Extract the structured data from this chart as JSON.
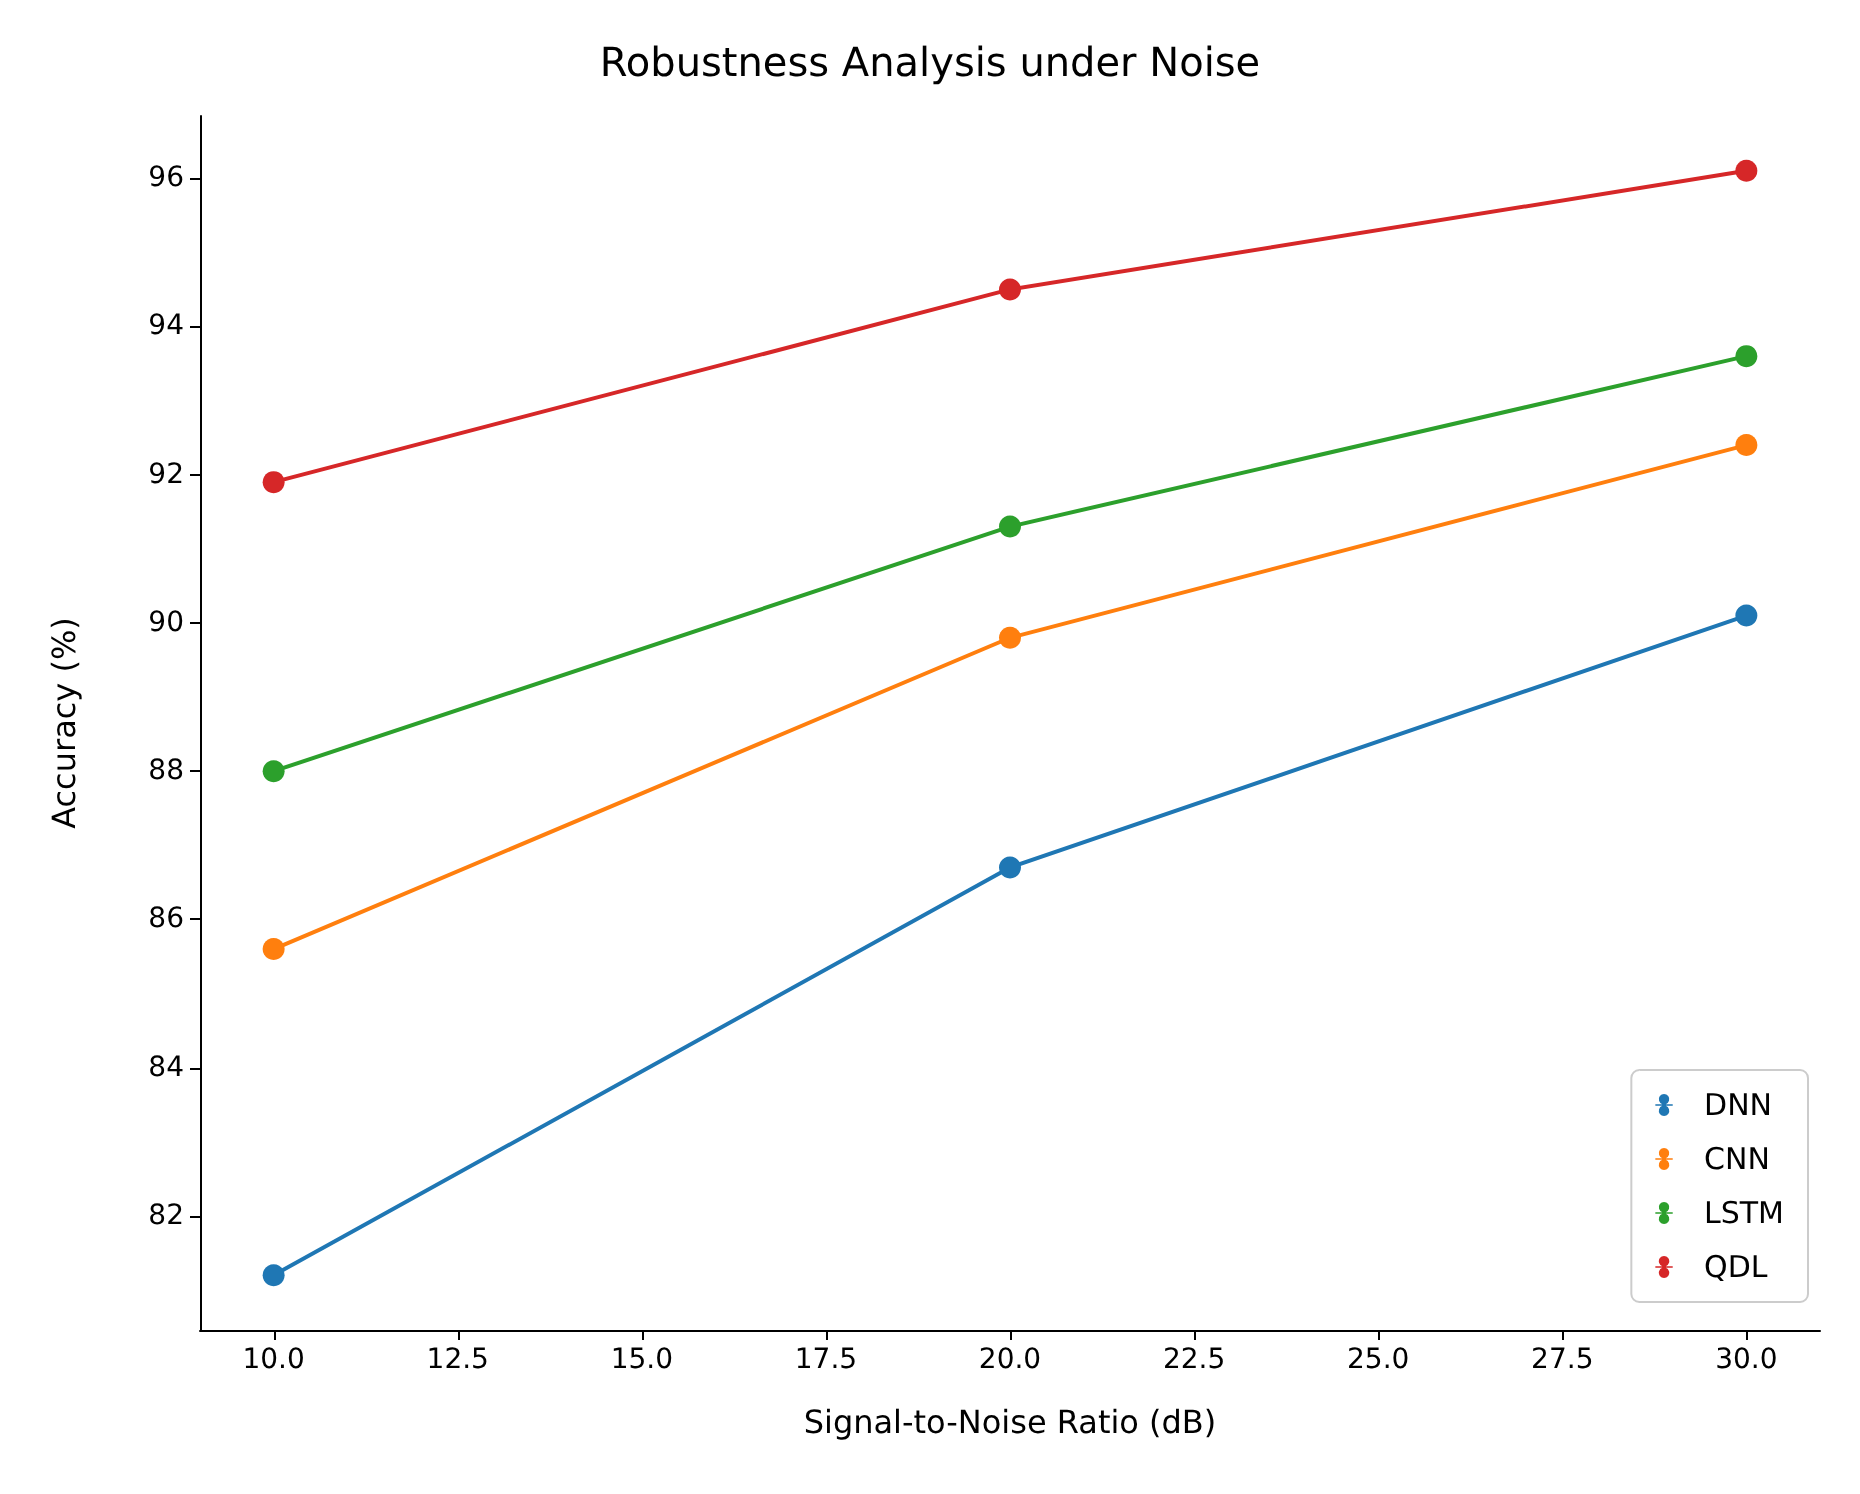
{
  "chart_data": {
    "type": "line",
    "title": "Robustness Analysis under Noise",
    "xlabel": "Signal-to-Noise Ratio (dB)",
    "ylabel": "Accuracy (%)",
    "x": [
      10,
      20,
      30
    ],
    "series": [
      {
        "name": "DNN",
        "color": "#1f77b4",
        "values": [
          81.2,
          86.7,
          90.1
        ]
      },
      {
        "name": "CNN",
        "color": "#ff7f0e",
        "values": [
          85.6,
          89.8,
          92.4
        ]
      },
      {
        "name": "LSTM",
        "color": "#2ca02c",
        "values": [
          88.0,
          91.3,
          93.6
        ]
      },
      {
        "name": "QDL",
        "color": "#d62728",
        "values": [
          91.9,
          94.5,
          96.1
        ]
      }
    ],
    "xlim": [
      9,
      31
    ],
    "xticks": [
      {
        "value": 10,
        "label": "10.0"
      },
      {
        "value": 12.5,
        "label": "12.5"
      },
      {
        "value": 15,
        "label": "15.0"
      },
      {
        "value": 17.5,
        "label": "17.5"
      },
      {
        "value": 20,
        "label": "20.0"
      },
      {
        "value": 22.5,
        "label": "22.5"
      },
      {
        "value": 25,
        "label": "25.0"
      },
      {
        "value": 27.5,
        "label": "27.5"
      },
      {
        "value": 30,
        "label": "30.0"
      }
    ],
    "ylim": [
      80.46,
      96.84
    ],
    "yticks": [
      82,
      84,
      86,
      88,
      90,
      92,
      94,
      96
    ],
    "grid": false,
    "legend": "bottom right",
    "marker": "circle",
    "line_style": "solid"
  }
}
